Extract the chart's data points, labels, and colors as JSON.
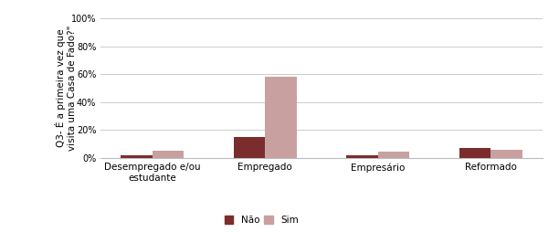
{
  "categories": [
    "Desempregado e/ou\nestudante",
    "Empregado",
    "Empresário",
    "Reformado"
  ],
  "nao_values": [
    2.0,
    15.0,
    1.5,
    7.0
  ],
  "sim_values": [
    5.0,
    58.0,
    4.5,
    5.5
  ],
  "nao_color": "#7b2d2d",
  "sim_color": "#c9a0a0",
  "ylabel": "Q3- É a primeira vez que\nvisita uma Casa de Fado?\"",
  "ylim": [
    0,
    100
  ],
  "yticks": [
    0,
    20,
    40,
    60,
    80,
    100
  ],
  "ytick_labels": [
    "0%",
    "20%",
    "40%",
    "60%",
    "80%",
    "100%"
  ],
  "legend_nao": "Não",
  "legend_sim": "Sim",
  "bar_width": 0.28,
  "background_color": "#ffffff",
  "grid_color": "#cccccc"
}
